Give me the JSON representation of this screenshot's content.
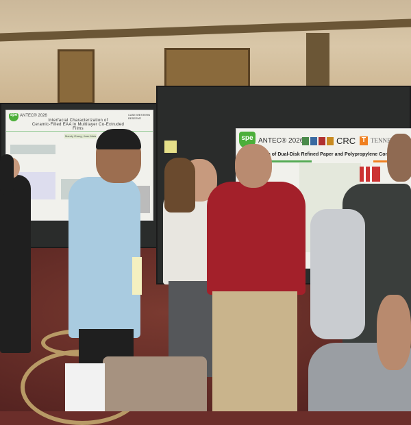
{
  "scene": "poster session",
  "left_poster": {
    "logo": "spe",
    "event": "ANTEC® 2026",
    "title_line1": "Interfacial Characterization of",
    "title_line2": "Ceramic-Filled EAA in Multilayer Co-Extruded Films",
    "institution": "CASE WESTERN RESERVE",
    "authors": "Mandy Zhang, Joao Maia"
  },
  "right_poster": {
    "logo": "spe",
    "event": "ANTEC® 2026",
    "sponsor": "CRC",
    "university_mark": "T",
    "university": "TENNE",
    "title": "…tion of Dual-Disk Refined Paper and Polypropylene Com…"
  },
  "colors": {
    "carpet": "#6b2e2a",
    "wall": "#d9c7a8",
    "board": "#2a2c2b",
    "spe_green": "#4caf3a",
    "shirt_red": "#a3202a",
    "shirt_blue": "#a9cbe0"
  }
}
